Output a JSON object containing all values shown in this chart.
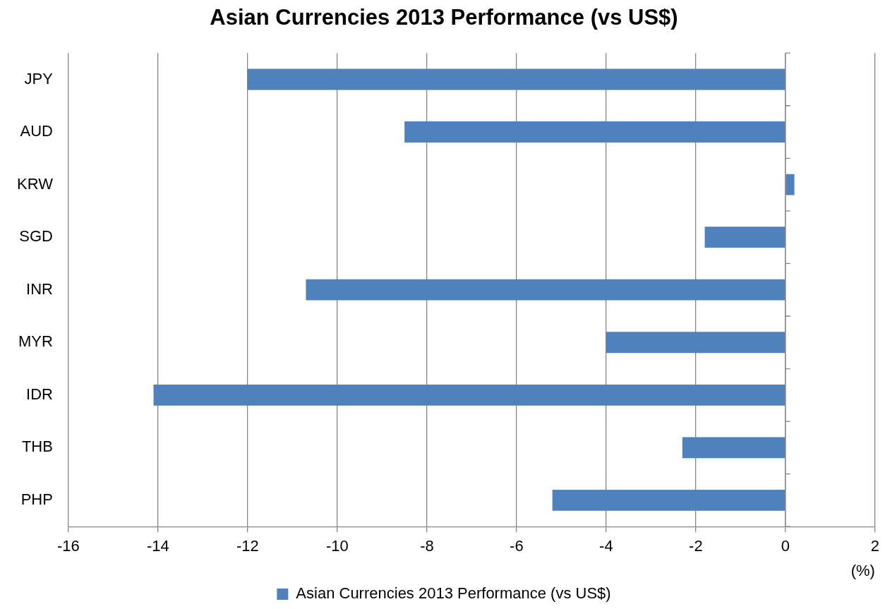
{
  "chart_data": {
    "type": "bar",
    "orientation": "horizontal",
    "title": "Asian Currencies 2013 Performance (vs US$)",
    "xlabel": "(%)",
    "categories": [
      "JPY",
      "AUD",
      "KRW",
      "SGD",
      "INR",
      "MYR",
      "IDR",
      "THB",
      "PHP"
    ],
    "series": [
      {
        "name": "Asian Currencies 2013 Performance (vs US$)",
        "color": "#4f81bd",
        "values": [
          -12.0,
          -8.5,
          0.2,
          -1.8,
          -10.7,
          -4.0,
          -14.1,
          -2.3,
          -5.2
        ]
      }
    ],
    "xlim": [
      -16,
      2
    ],
    "xticks": [
      -16,
      -14,
      -12,
      -10,
      -8,
      -6,
      -4,
      -2,
      0,
      2
    ],
    "grid": "x",
    "legend": "bottom"
  }
}
